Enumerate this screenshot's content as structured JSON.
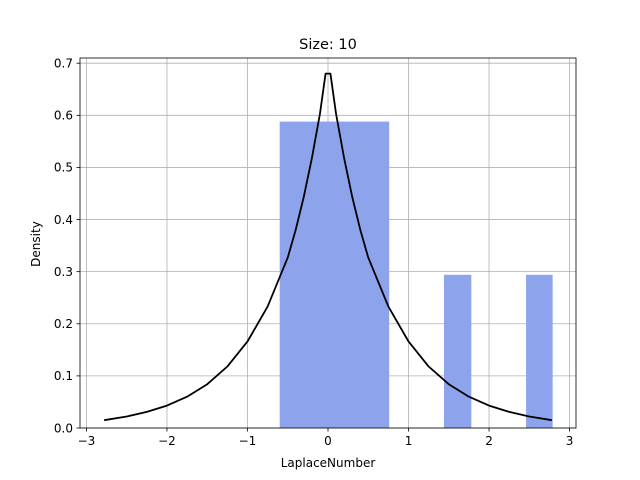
{
  "chart_data": {
    "type": "bar",
    "title": "Size: 10",
    "xlabel": "LaplaceNumber",
    "ylabel": "Density",
    "xlim": [
      -3.08,
      3.08
    ],
    "ylim": [
      0,
      0.71
    ],
    "grid": true,
    "xticks": [
      -3,
      -2,
      -1,
      0,
      1,
      2,
      3
    ],
    "xtick_labels": [
      "−3",
      "−2",
      "−1",
      "0",
      "1",
      "2",
      "3"
    ],
    "yticks": [
      0.0,
      0.1,
      0.2,
      0.3,
      0.4,
      0.5,
      0.6,
      0.7
    ],
    "ytick_labels": [
      "0.0",
      "0.1",
      "0.2",
      "0.3",
      "0.4",
      "0.5",
      "0.6",
      "0.7"
    ],
    "histogram": {
      "color": "#8da3ec",
      "bins": [
        {
          "x0": -0.6,
          "x1": 0.76,
          "density": 0.588
        },
        {
          "x0": 1.44,
          "x1": 1.78,
          "density": 0.294
        },
        {
          "x0": 2.46,
          "x1": 2.79,
          "density": 0.294
        }
      ]
    },
    "pdf_curve": {
      "color": "#000000",
      "x": [
        -2.78,
        -2.5,
        -2.25,
        -2.0,
        -1.75,
        -1.5,
        -1.25,
        -1.0,
        -0.75,
        -0.5,
        -0.4,
        -0.3,
        -0.2,
        -0.1,
        -0.03,
        0.03,
        0.1,
        0.2,
        0.3,
        0.4,
        0.5,
        0.75,
        1.0,
        1.25,
        1.5,
        1.75,
        2.0,
        2.25,
        2.5,
        2.78
      ],
      "y": [
        0.015,
        0.022,
        0.031,
        0.043,
        0.06,
        0.084,
        0.118,
        0.166,
        0.233,
        0.327,
        0.381,
        0.444,
        0.518,
        0.603,
        0.68,
        0.68,
        0.603,
        0.518,
        0.444,
        0.381,
        0.327,
        0.233,
        0.166,
        0.118,
        0.084,
        0.06,
        0.043,
        0.031,
        0.022,
        0.015
      ]
    }
  }
}
